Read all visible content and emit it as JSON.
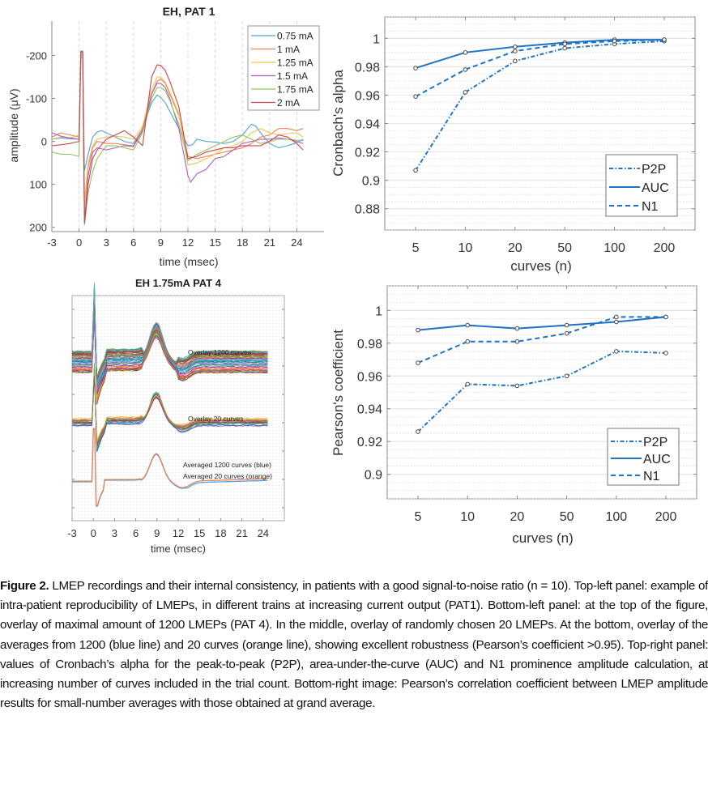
{
  "chart_data": [
    {
      "id": "top-left",
      "type": "line",
      "title": "EH, PAT 1",
      "xlabel": "time (msec)",
      "ylabel": "amplitude (μV)",
      "xlim": [
        -3,
        27
      ],
      "ylim": [
        -280,
        210
      ],
      "y_reversed": true,
      "xticks": [
        -3,
        0,
        3,
        6,
        9,
        12,
        15,
        18,
        21,
        24
      ],
      "xtick_labels": [
        "-3",
        "0",
        "3",
        "6",
        "9",
        "12",
        "15",
        "18",
        "21",
        "24"
      ],
      "yticks": [
        -200,
        -100,
        0,
        100,
        200
      ],
      "ytick_labels": [
        "-200",
        "-100",
        "0",
        "100",
        "200"
      ],
      "grid": "vertical dashed at x ticks",
      "legend_position": "top-right",
      "series": [
        {
          "name": "0.75 mA",
          "color": "#4fa3d9",
          "x": [
            -3,
            -2,
            -1,
            0,
            0.2,
            0.4,
            0.6,
            1,
            1.5,
            2,
            2.5,
            3,
            4,
            5,
            6,
            7,
            8,
            8.6,
            9,
            9.5,
            10,
            11,
            12,
            12.5,
            13,
            14,
            15,
            16,
            17,
            18,
            19,
            19.5,
            20,
            21,
            22,
            23,
            24,
            24.7
          ],
          "y": [
            -5,
            -8,
            -6,
            -5,
            -195,
            -195,
            68,
            30,
            -10,
            -22,
            -25,
            -20,
            -10,
            0,
            5,
            -30,
            -90,
            -108,
            -102,
            -90,
            -70,
            -30,
            10,
            8,
            -5,
            0,
            2,
            5,
            0,
            -15,
            -40,
            -35,
            -20,
            5,
            15,
            10,
            3,
            -5
          ]
        },
        {
          "name": "1 mA",
          "color": "#e8835a",
          "x": [
            -3,
            -2,
            -1,
            0,
            0.2,
            0.4,
            0.6,
            1,
            1.5,
            2,
            3,
            4,
            5,
            6,
            7,
            8,
            8.6,
            9,
            9.5,
            10,
            11,
            12,
            13,
            14,
            15,
            16,
            17,
            18,
            19,
            20,
            21,
            22,
            23,
            24,
            24.7
          ],
          "y": [
            -10,
            -20,
            -15,
            -10,
            -200,
            -200,
            150,
            60,
            15,
            0,
            5,
            5,
            8,
            10,
            -30,
            -110,
            -140,
            -145,
            -135,
            -110,
            -60,
            35,
            40,
            35,
            30,
            25,
            20,
            15,
            5,
            -10,
            -15,
            -30,
            -30,
            -25,
            -30
          ]
        },
        {
          "name": "1.25 mA",
          "color": "#f5c24a",
          "x": [
            -3,
            -2,
            -1,
            0,
            0.2,
            0.4,
            0.6,
            1,
            1.5,
            2,
            3,
            4,
            5,
            6,
            7,
            8,
            8.6,
            9,
            9.5,
            10,
            11,
            12,
            13,
            14,
            15,
            16,
            17,
            18,
            19,
            20,
            21,
            22,
            23,
            24,
            24.7
          ],
          "y": [
            -5,
            -10,
            -8,
            -15,
            -205,
            -205,
            140,
            50,
            10,
            -5,
            -10,
            -12,
            -10,
            -5,
            -35,
            -120,
            -150,
            -150,
            -138,
            -115,
            -65,
            55,
            50,
            40,
            30,
            15,
            10,
            0,
            -20,
            -30,
            -20,
            -15,
            -18,
            -20,
            -10
          ]
        },
        {
          "name": "1.5 mA",
          "color": "#a95fbf",
          "x": [
            -3,
            -2,
            -1,
            0,
            0.2,
            0.4,
            0.6,
            1,
            1.5,
            2,
            3,
            4,
            5,
            6,
            7,
            8,
            8.6,
            9,
            9.5,
            10,
            11,
            12,
            12.3,
            13,
            14,
            15,
            16,
            17,
            18,
            19,
            20,
            21,
            22,
            23,
            24,
            24.7
          ],
          "y": [
            -20,
            -12,
            -8,
            -5,
            -210,
            -210,
            185,
            80,
            25,
            15,
            20,
            15,
            10,
            12,
            -25,
            -110,
            -135,
            -135,
            -125,
            -100,
            -30,
            80,
            95,
            75,
            65,
            40,
            35,
            20,
            5,
            0,
            -5,
            -5,
            -8,
            -5,
            0,
            5
          ]
        },
        {
          "name": "1.75 mA",
          "color": "#8fc45a",
          "x": [
            -3,
            -2,
            -1,
            0,
            0.2,
            0.4,
            0.6,
            1,
            1.5,
            2,
            3,
            4,
            5,
            6,
            7,
            8,
            8.6,
            9,
            9.5,
            10,
            11,
            12,
            13,
            14,
            15,
            16,
            17,
            18,
            19,
            20,
            21,
            22,
            23,
            24,
            24.7
          ],
          "y": [
            25,
            30,
            30,
            35,
            -200,
            -200,
            195,
            120,
            70,
            40,
            10,
            10,
            15,
            20,
            -20,
            -100,
            -125,
            -125,
            -118,
            -95,
            -40,
            45,
            30,
            20,
            10,
            0,
            -10,
            -15,
            -5,
            5,
            0,
            -5,
            -5,
            -3,
            -2
          ]
        },
        {
          "name": "2 mA",
          "color": "#c8444f",
          "x": [
            -3,
            -2,
            -1,
            0,
            0.2,
            0.4,
            0.6,
            1,
            1.5,
            2,
            3,
            4,
            5,
            6,
            7,
            8,
            8.6,
            9,
            9.5,
            10,
            11,
            12,
            13,
            14,
            15,
            16,
            17,
            18,
            19,
            20,
            21,
            22,
            23,
            24,
            24.7
          ],
          "y": [
            10,
            8,
            5,
            0,
            -208,
            -208,
            190,
            100,
            40,
            20,
            -5,
            -15,
            -25,
            -10,
            10,
            -150,
            -178,
            -177,
            -165,
            -140,
            -80,
            40,
            35,
            25,
            20,
            15,
            15,
            10,
            10,
            10,
            0,
            -15,
            -10,
            5,
            20
          ]
        }
      ]
    },
    {
      "id": "top-right",
      "type": "line",
      "title": "",
      "xlabel": "curves (n)",
      "ylabel": "Cronbach's alpha",
      "categories": [
        "5",
        "10",
        "20",
        "50",
        "100",
        "200"
      ],
      "ylim": [
        0.865,
        1.015
      ],
      "yticks": [
        0.88,
        0.9,
        0.92,
        0.94,
        0.96,
        0.98,
        1
      ],
      "ytick_labels": [
        "0.88",
        "0.9",
        "0.92",
        "0.94",
        "0.96",
        "0.98",
        "1"
      ],
      "grid": "major and minor horizontal",
      "legend_position": "bottom-right",
      "series": [
        {
          "name": "P2P",
          "style": "dashdot",
          "color": "#1f72c4",
          "values": [
            0.907,
            0.962,
            0.984,
            0.993,
            0.996,
            0.998
          ]
        },
        {
          "name": "AUC",
          "style": "solid",
          "color": "#1f72c4",
          "values": [
            0.979,
            0.99,
            0.994,
            0.997,
            0.999,
            0.999
          ]
        },
        {
          "name": "N1",
          "style": "dashed",
          "color": "#1f72c4",
          "values": [
            0.959,
            0.978,
            0.991,
            0.996,
            0.998,
            0.999
          ]
        }
      ]
    },
    {
      "id": "bottom-left",
      "type": "line",
      "title": "EH 1.75mA PAT 4",
      "xlabel": "time (msec)",
      "ylabel": "",
      "xlim": [
        -3,
        27
      ],
      "xticks": [
        -3,
        0,
        3,
        6,
        9,
        12,
        15,
        18,
        21,
        24
      ],
      "xtick_labels": [
        "-3",
        "0",
        "3",
        "6",
        "9",
        "12",
        "15",
        "18",
        "21",
        "24"
      ],
      "grid": "dense dotted",
      "annotations": [
        "Overlay 1200 curves",
        "Overlay 20 curves",
        "Averaged 1200 curves (blue)",
        "Averaged 20 curves (orange)"
      ],
      "groups": [
        {
          "name": "Overlay 1200 curves",
          "count_drawn": 60
        },
        {
          "name": "Overlay 20 curves",
          "count_drawn": 20
        },
        {
          "name": "Averaged 1200 curves",
          "color": "#4fa3d9"
        },
        {
          "name": "Averaged 20 curves",
          "color": "#e8835a"
        }
      ]
    },
    {
      "id": "bottom-right",
      "type": "line",
      "title": "",
      "xlabel": "curves (n)",
      "ylabel": "Pearson's coefficient",
      "categories": [
        "5",
        "10",
        "20",
        "50",
        "100",
        "200"
      ],
      "ylim": [
        0.885,
        1.015
      ],
      "yticks": [
        0.9,
        0.92,
        0.94,
        0.96,
        0.98,
        1
      ],
      "ytick_labels": [
        "0.9",
        "0.92",
        "0.94",
        "0.96",
        "0.98",
        "1"
      ],
      "grid": "major and minor horizontal",
      "legend_position": "bottom-right",
      "series": [
        {
          "name": "P2P",
          "style": "dashdot",
          "color": "#1f72c4",
          "values": [
            0.926,
            0.955,
            0.954,
            0.96,
            0.975,
            0.974
          ]
        },
        {
          "name": "AUC",
          "style": "solid",
          "color": "#1f72c4",
          "values": [
            0.988,
            0.991,
            0.989,
            0.991,
            0.993,
            0.996
          ]
        },
        {
          "name": "N1",
          "style": "dashed",
          "color": "#1f72c4",
          "values": [
            0.968,
            0.981,
            0.981,
            0.986,
            0.996,
            0.996
          ]
        }
      ]
    }
  ],
  "caption": {
    "label": "Figure 2.",
    "text": " LMEP recordings and their internal consistency, in patients with a good signal-to-noise ratio (n = 10). Top-left panel: example of intra-patient reproducibility of LMEPs, in different trains at increasing current output (PAT1). Bottom-left panel: at the top of the figure, overlay of maximal amount of 1200 LMEPs (PAT 4). In the middle, overlay of randomly chosen 20 LMEPs. At the bottom, overlay of the averages from 1200 (blue line) and 20 curves (orange line), showing excellent robustness (Pearson’s coefficient >0.95). Top-right panel: values of Cronbach’s alpha for the peak-to-peak (P2P), area-under-the-curve (AUC) and N1 prominence amplitude calculation, at increasing number of curves included in the trial count. Bottom-right image: Pearson’s correlation coefficient between LMEP amplitude results for small-number averages with those obtained at grand average."
  }
}
